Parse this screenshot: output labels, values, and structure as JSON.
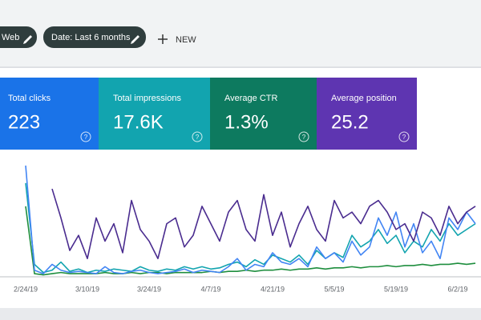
{
  "filters": {
    "chips": [
      "Web",
      "Date: Last 6 months"
    ],
    "new_button": "NEW"
  },
  "cards": [
    {
      "title": "Total clicks",
      "value": "223",
      "help": "?",
      "color": "#1a73e8"
    },
    {
      "title": "Total impressions",
      "value": "17.6K",
      "help": "?",
      "color": "#12a4af"
    },
    {
      "title": "Average CTR",
      "value": "1.3%",
      "help": "?",
      "color": "#0d7a5f"
    },
    {
      "title": "Average position",
      "value": "25.2",
      "help": "?",
      "color": "#5e35b1"
    }
  ],
  "chart_data": {
    "type": "line",
    "categories": [
      "2/24/19",
      null,
      null,
      null,
      null,
      null,
      null,
      "3/10/19",
      null,
      null,
      null,
      null,
      null,
      null,
      "3/24/19",
      null,
      null,
      null,
      null,
      null,
      null,
      "4/7/19",
      null,
      null,
      null,
      null,
      null,
      null,
      "4/21/19",
      null,
      null,
      null,
      null,
      null,
      null,
      "5/5/19",
      null,
      null,
      null,
      null,
      null,
      null,
      "5/19/19",
      null,
      null,
      null,
      null,
      null,
      null,
      "6/2/19",
      null,
      null
    ],
    "series": [
      {
        "color": "#1e8e3e",
        "values": [
          60,
          2,
          1,
          2,
          3,
          2,
          2,
          2,
          2,
          3,
          2,
          2,
          3,
          2,
          3,
          3,
          2,
          3,
          3,
          3,
          3,
          4,
          3,
          4,
          4,
          5,
          4,
          5,
          5,
          6,
          5,
          6,
          6,
          7,
          6,
          7,
          7,
          8,
          7,
          8,
          8,
          9,
          8,
          9,
          9,
          10,
          9,
          10,
          10,
          11,
          10,
          11
        ]
      },
      {
        "color": "#12a4af",
        "values": [
          80,
          10,
          3,
          5,
          12,
          4,
          6,
          3,
          5,
          4,
          6,
          5,
          4,
          8,
          5,
          4,
          6,
          5,
          8,
          6,
          8,
          6,
          7,
          10,
          12,
          8,
          14,
          10,
          18,
          15,
          12,
          18,
          10,
          22,
          15,
          20,
          16,
          35,
          25,
          30,
          40,
          28,
          35,
          20,
          30,
          25,
          40,
          30,
          45,
          35,
          40,
          45
        ]
      },
      {
        "color": "#4285f4",
        "values": [
          95,
          5,
          2,
          10,
          5,
          3,
          4,
          3,
          2,
          8,
          3,
          2,
          4,
          5,
          3,
          2,
          3,
          4,
          6,
          3,
          5,
          4,
          3,
          8,
          15,
          5,
          10,
          8,
          20,
          12,
          10,
          15,
          8,
          25,
          15,
          20,
          12,
          30,
          18,
          25,
          50,
          35,
          55,
          25,
          45,
          20,
          30,
          15,
          50,
          40,
          55,
          45
        ]
      },
      {
        "color": "#4a2c8f",
        "values": [
          null,
          null,
          null,
          75,
          50,
          22,
          35,
          15,
          50,
          30,
          45,
          20,
          65,
          40,
          30,
          15,
          45,
          50,
          25,
          35,
          60,
          45,
          30,
          55,
          65,
          40,
          30,
          70,
          35,
          55,
          25,
          45,
          60,
          40,
          30,
          65,
          50,
          55,
          45,
          60,
          65,
          55,
          40,
          45,
          30,
          55,
          50,
          35,
          60,
          45,
          55,
          60
        ]
      }
    ]
  }
}
